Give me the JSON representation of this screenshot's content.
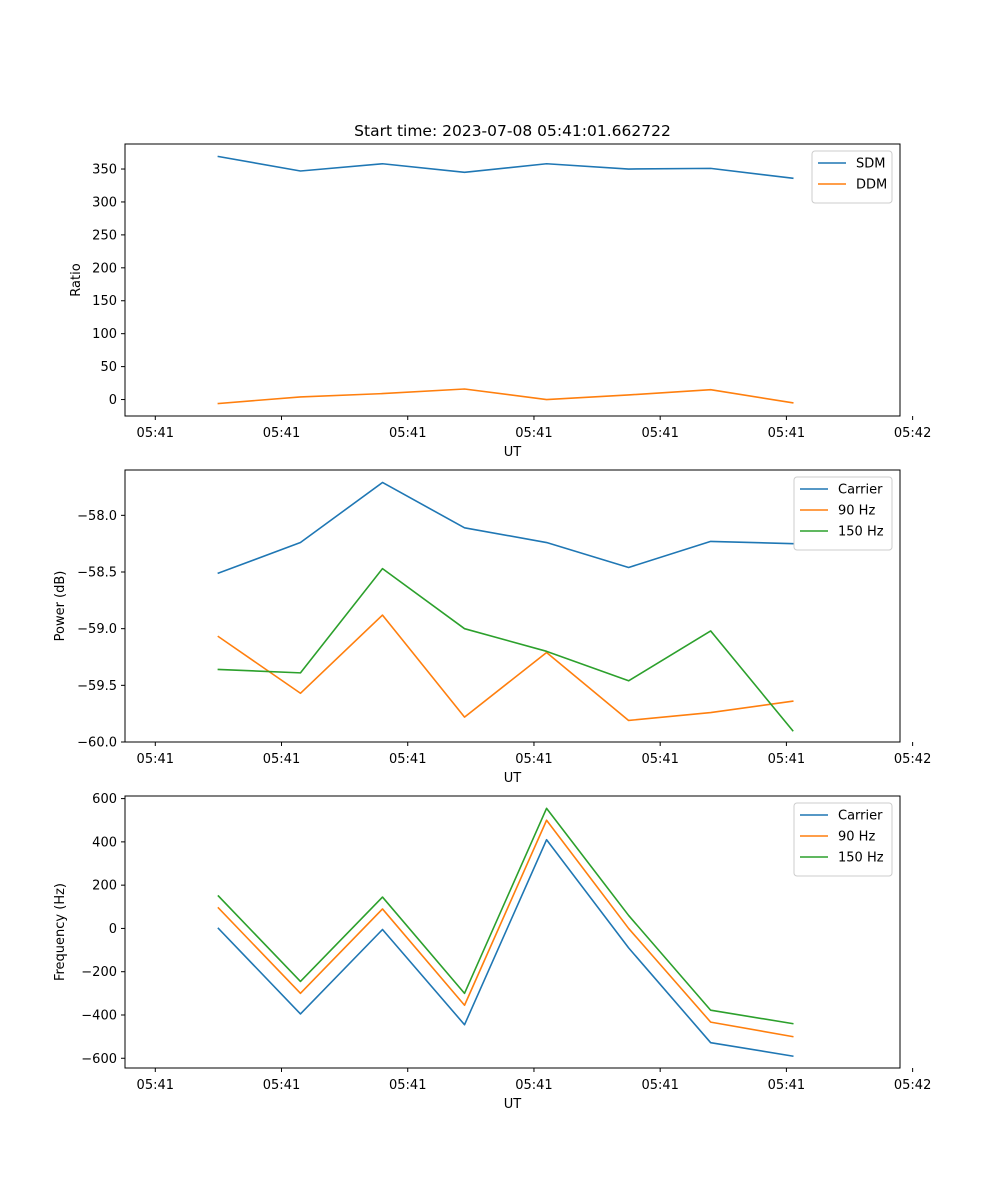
{
  "colors": {
    "c0": "#1f77b4",
    "c1": "#ff7f0e",
    "c2": "#2ca02c"
  },
  "chart_data": [
    {
      "type": "line",
      "title": "Start time: 2023-07-08 05:41:01.662722",
      "xlabel": "UT",
      "ylabel": "Ratio",
      "xlim": [
        -0.24,
        5.9
      ],
      "ylim": [
        -25,
        388
      ],
      "xticks": [
        {
          "v": 0,
          "label": "05:41"
        },
        {
          "v": 1,
          "label": "05:41"
        },
        {
          "v": 2,
          "label": "05:41"
        },
        {
          "v": 3,
          "label": "05:41"
        },
        {
          "v": 4,
          "label": "05:41"
        },
        {
          "v": 5,
          "label": "05:41"
        },
        {
          "v": 6,
          "label": "05:42"
        }
      ],
      "yticks": [
        {
          "v": 0,
          "label": "0"
        },
        {
          "v": 50,
          "label": "50"
        },
        {
          "v": 100,
          "label": "100"
        },
        {
          "v": 150,
          "label": "150"
        },
        {
          "v": 200,
          "label": "200"
        },
        {
          "v": 250,
          "label": "250"
        },
        {
          "v": 300,
          "label": "300"
        },
        {
          "v": 350,
          "label": "350"
        }
      ],
      "legend_position": "top-right",
      "x": [
        0.5,
        1.15,
        1.8,
        2.45,
        3.1,
        3.75,
        4.4,
        5.05
      ],
      "series": [
        {
          "name": "SDM",
          "color": "c0",
          "values": [
            369,
            347,
            358,
            345,
            358,
            350,
            351,
            336
          ]
        },
        {
          "name": "DDM",
          "color": "c1",
          "values": [
            -6,
            4,
            9,
            16,
            0,
            7,
            15,
            -5
          ]
        }
      ]
    },
    {
      "type": "line",
      "title": "",
      "xlabel": "UT",
      "ylabel": "Power (dB)",
      "xlim": [
        -0.24,
        5.9
      ],
      "ylim": [
        -60.0,
        -57.6
      ],
      "xticks": [
        {
          "v": 0,
          "label": "05:41"
        },
        {
          "v": 1,
          "label": "05:41"
        },
        {
          "v": 2,
          "label": "05:41"
        },
        {
          "v": 3,
          "label": "05:41"
        },
        {
          "v": 4,
          "label": "05:41"
        },
        {
          "v": 5,
          "label": "05:41"
        },
        {
          "v": 6,
          "label": "05:42"
        }
      ],
      "yticks": [
        {
          "v": -60.0,
          "label": "−60.0"
        },
        {
          "v": -59.5,
          "label": "−59.5"
        },
        {
          "v": -59.0,
          "label": "−59.0"
        },
        {
          "v": -58.5,
          "label": "−58.5"
        },
        {
          "v": -58.0,
          "label": "−58.0"
        }
      ],
      "legend_position": "top-right",
      "x": [
        0.5,
        1.15,
        1.8,
        2.45,
        3.1,
        3.75,
        4.4,
        5.05
      ],
      "series": [
        {
          "name": "Carrier",
          "color": "c0",
          "values": [
            -58.51,
            -58.24,
            -57.71,
            -58.11,
            -58.24,
            -58.46,
            -58.23,
            -58.25
          ]
        },
        {
          "name": "90 Hz",
          "color": "c1",
          "values": [
            -59.07,
            -59.57,
            -58.88,
            -59.78,
            -59.21,
            -59.81,
            -59.74,
            -59.64
          ]
        },
        {
          "name": "150 Hz",
          "color": "c2",
          "values": [
            -59.36,
            -59.39,
            -58.47,
            -59.0,
            -59.2,
            -59.46,
            -59.02,
            -59.9
          ]
        }
      ]
    },
    {
      "type": "line",
      "title": "",
      "xlabel": "UT",
      "ylabel": "Frequency (Hz)",
      "xlim": [
        -0.24,
        5.9
      ],
      "ylim": [
        -645,
        612
      ],
      "xticks": [
        {
          "v": 0,
          "label": "05:41"
        },
        {
          "v": 1,
          "label": "05:41"
        },
        {
          "v": 2,
          "label": "05:41"
        },
        {
          "v": 3,
          "label": "05:41"
        },
        {
          "v": 4,
          "label": "05:41"
        },
        {
          "v": 5,
          "label": "05:41"
        },
        {
          "v": 6,
          "label": "05:42"
        }
      ],
      "yticks": [
        {
          "v": -600,
          "label": "−600"
        },
        {
          "v": -400,
          "label": "−400"
        },
        {
          "v": -200,
          "label": "−200"
        },
        {
          "v": 0,
          "label": "0"
        },
        {
          "v": 200,
          "label": "200"
        },
        {
          "v": 400,
          "label": "400"
        },
        {
          "v": 600,
          "label": "600"
        }
      ],
      "legend_position": "top-right",
      "x": [
        0.5,
        1.15,
        1.8,
        2.45,
        3.1,
        3.75,
        4.4,
        5.05
      ],
      "series": [
        {
          "name": "Carrier",
          "color": "c0",
          "values": [
            0,
            -395,
            -5,
            -445,
            410,
            -90,
            -528,
            -590
          ]
        },
        {
          "name": "90 Hz",
          "color": "c1",
          "values": [
            95,
            -300,
            90,
            -355,
            500,
            0,
            -433,
            -500
          ]
        },
        {
          "name": "150 Hz",
          "color": "c2",
          "values": [
            150,
            -245,
            145,
            -300,
            555,
            60,
            -378,
            -440
          ]
        }
      ]
    }
  ]
}
